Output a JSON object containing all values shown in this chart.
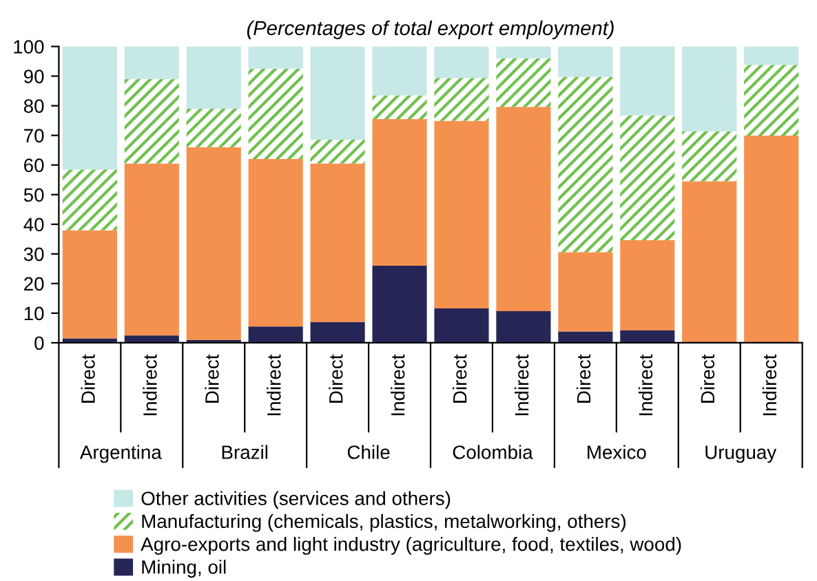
{
  "chart_data": {
    "type": "bar",
    "stacked": true,
    "title": "(Percentages of total export employment)",
    "categories": [
      "Direct",
      "Indirect",
      "Direct",
      "Indirect",
      "Direct",
      "Indirect",
      "Direct",
      "Indirect",
      "Direct",
      "Indirect",
      "Direct",
      "Indirect"
    ],
    "annotations": [
      "Argentina",
      "Brazil",
      "Chile",
      "Colombia",
      "Mexico",
      "Uruguay"
    ],
    "series": [
      {
        "name": "Mining, oil",
        "color": "#262656",
        "values": [
          1.5,
          2.5,
          1,
          5.5,
          7,
          26,
          11.6,
          10.7,
          3.8,
          4.2,
          0,
          0
        ]
      },
      {
        "name": "Agro-exports and light industry (agriculture, food, textiles, wood)",
        "color": "#f5914f",
        "values": [
          36.5,
          58,
          65,
          56.5,
          53.5,
          49.5,
          63.3,
          68.9,
          26.8,
          30.4,
          54.5,
          69.9
        ]
      },
      {
        "name": "Manufacturing (chemicals, plastics, metalworking, others)",
        "color": "#6dbf4b",
        "values": [
          20.5,
          28.5,
          13,
          30.5,
          8,
          8,
          14.5,
          16.4,
          59.1,
          42.1,
          16.8,
          23.9
        ]
      },
      {
        "name": "Other activities (services and others)",
        "color": "#c6e8e6",
        "values": [
          41.5,
          11,
          21,
          7.5,
          31.5,
          16.5,
          10.6,
          4,
          10.3,
          23.3,
          28.7,
          6.2
        ]
      }
    ],
    "ylim": [
      0,
      100
    ],
    "yticks": [
      0,
      10,
      20,
      30,
      40,
      50,
      60,
      70,
      80,
      90,
      100
    ],
    "grid": false,
    "legend": "bottom"
  }
}
